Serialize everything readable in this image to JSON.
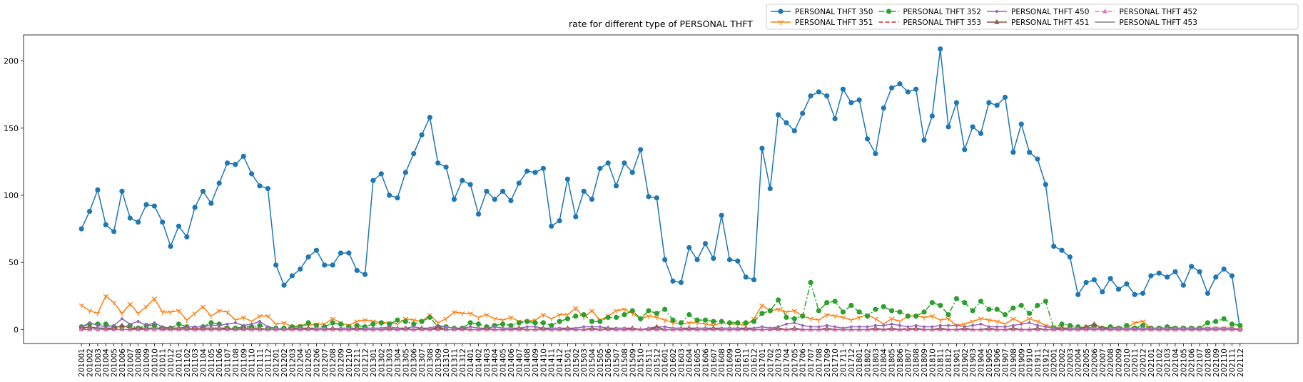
{
  "chart_data": {
    "type": "line",
    "title": "rate for different type of PERSONAL THFT",
    "categories": [
      "201001",
      "201002",
      "201003",
      "201004",
      "201005",
      "201006",
      "201007",
      "201008",
      "201009",
      "201010",
      "201011",
      "201012",
      "201101",
      "201102",
      "201103",
      "201104",
      "201105",
      "201106",
      "201107",
      "201108",
      "201109",
      "201110",
      "201111",
      "201112",
      "201201",
      "201202",
      "201203",
      "201204",
      "201205",
      "201206",
      "201207",
      "201208",
      "201209",
      "201210",
      "201211",
      "201212",
      "201301",
      "201302",
      "201303",
      "201304",
      "201305",
      "201306",
      "201307",
      "201308",
      "201309",
      "201310",
      "201311",
      "201312",
      "201401",
      "201402",
      "201403",
      "201404",
      "201405",
      "201406",
      "201407",
      "201408",
      "201409",
      "201410",
      "201411",
      "201412",
      "201501",
      "201502",
      "201503",
      "201504",
      "201505",
      "201506",
      "201507",
      "201508",
      "201509",
      "201510",
      "201511",
      "201512",
      "201601",
      "201602",
      "201603",
      "201604",
      "201605",
      "201606",
      "201607",
      "201608",
      "201609",
      "201610",
      "201611",
      "201612",
      "201701",
      "201702",
      "201703",
      "201704",
      "201705",
      "201706",
      "201707",
      "201708",
      "201709",
      "201710",
      "201711",
      "201712",
      "201801",
      "201802",
      "201803",
      "201804",
      "201805",
      "201806",
      "201807",
      "201808",
      "201809",
      "201810",
      "201811",
      "201812",
      "201901",
      "201902",
      "201903",
      "201904",
      "201905",
      "201906",
      "201907",
      "201908",
      "201909",
      "201910",
      "201911",
      "201912",
      "202001",
      "202002",
      "202003",
      "202004",
      "202005",
      "202006",
      "202007",
      "202008",
      "202009",
      "202010",
      "202011",
      "202012",
      "202101",
      "202102",
      "202103",
      "202104",
      "202105",
      "202106",
      "202107",
      "202108",
      "202109",
      "202110",
      "202111",
      "202112"
    ],
    "series": [
      {
        "name": "PERSONAL THFT 350",
        "color": "#1f77b4",
        "marker": "circle",
        "dash": "solid",
        "values": [
          75,
          88,
          104,
          78,
          73,
          103,
          83,
          80,
          93,
          92,
          80,
          62,
          77,
          69,
          91,
          103,
          94,
          109,
          124,
          123,
          129,
          116,
          107,
          105,
          48,
          33,
          40,
          45,
          54,
          59,
          48,
          48,
          57,
          57,
          44,
          41,
          111,
          116,
          100,
          98,
          117,
          131,
          145,
          158,
          124,
          121,
          97,
          111,
          108,
          86,
          103,
          97,
          103,
          96,
          109,
          118,
          117,
          120,
          77,
          81,
          112,
          84,
          103,
          97,
          120,
          124,
          107,
          124,
          117,
          134,
          99,
          98,
          52,
          36,
          35,
          61,
          52,
          64,
          53,
          85,
          52,
          51,
          39,
          37,
          135,
          105,
          160,
          154,
          148,
          161,
          174,
          177,
          174,
          157,
          179,
          169,
          171,
          142,
          131,
          165,
          180,
          183,
          177,
          179,
          141,
          159,
          209,
          151,
          169,
          134,
          151,
          146,
          169,
          167,
          173,
          132,
          153,
          132,
          127,
          108,
          62,
          59,
          54,
          26,
          35,
          37,
          28,
          38,
          30,
          34,
          26,
          27,
          40,
          42,
          39,
          43,
          33,
          47,
          43,
          27,
          39,
          45,
          40,
          0
        ]
      },
      {
        "name": "PERSONAL THFT 351",
        "color": "#ff7f0e",
        "marker": "tri-down",
        "dash": "solid",
        "values": [
          18,
          14,
          12,
          25,
          20,
          12,
          19,
          12,
          17,
          23,
          13,
          13,
          14,
          7,
          12,
          17,
          10,
          14,
          13,
          7,
          9,
          6,
          10,
          10,
          4,
          5,
          2,
          3,
          3,
          4,
          4,
          8,
          5,
          3,
          6,
          7,
          6,
          5,
          5,
          4,
          8,
          7,
          6,
          11,
          5,
          8,
          13,
          12,
          12,
          9,
          11,
          8,
          7,
          9,
          6,
          6,
          7,
          11,
          8,
          11,
          11,
          16,
          9,
          14,
          7,
          10,
          14,
          15,
          12,
          8,
          10,
          9,
          7,
          5,
          4,
          5,
          5,
          4,
          3,
          5,
          4,
          4,
          3,
          8,
          18,
          14,
          15,
          13,
          14,
          10,
          8,
          7,
          11,
          10,
          9,
          7,
          9,
          11,
          8,
          4,
          8,
          6,
          10,
          10,
          9,
          10,
          7,
          8,
          3,
          4,
          6,
          8,
          7,
          6,
          4,
          8,
          5,
          8,
          6,
          3,
          2,
          1,
          1,
          1,
          2,
          1,
          1,
          1,
          1,
          1,
          5,
          6,
          1,
          1,
          1,
          1,
          1,
          1,
          1,
          1,
          1,
          1,
          1,
          0
        ]
      },
      {
        "name": "PERSONAL THFT 352",
        "color": "#2ca02c",
        "marker": "circle",
        "dash": "dashdot",
        "values": [
          2,
          4,
          4,
          4,
          2,
          2,
          3,
          1,
          3,
          3,
          1,
          1,
          4,
          2,
          1,
          2,
          5,
          4,
          1,
          1,
          2,
          2,
          3,
          1,
          1,
          1,
          2,
          2,
          5,
          3,
          2,
          5,
          4,
          2,
          3,
          2,
          4,
          5,
          4,
          7,
          6,
          4,
          6,
          9,
          2,
          2,
          1,
          1,
          5,
          4,
          2,
          3,
          4,
          3,
          5,
          6,
          5,
          5,
          3,
          6,
          8,
          10,
          11,
          6,
          6,
          9,
          9,
          11,
          14,
          8,
          14,
          12,
          15,
          7,
          5,
          11,
          7,
          7,
          6,
          6,
          5,
          5,
          5,
          6,
          12,
          14,
          22,
          9,
          8,
          10,
          35,
          14,
          20,
          21,
          13,
          18,
          13,
          10,
          15,
          17,
          14,
          13,
          10,
          10,
          13,
          20,
          18,
          11,
          23,
          20,
          14,
          21,
          15,
          15,
          11,
          16,
          18,
          12,
          18,
          21,
          1,
          4,
          3,
          2,
          1,
          3,
          1,
          2,
          1,
          3,
          1,
          3,
          1,
          1,
          2,
          1,
          1,
          1,
          1,
          5,
          6,
          8,
          4,
          3
        ]
      },
      {
        "name": "PERSONAL THFT 353",
        "color": "#d62728",
        "marker": "none",
        "dash": "dashed",
        "values": [
          0,
          1,
          0,
          0,
          1,
          0,
          0,
          1,
          0,
          0,
          0,
          0,
          0,
          0,
          1,
          0,
          0,
          0,
          1,
          0,
          0,
          0,
          0,
          0,
          0,
          0,
          0,
          0,
          0,
          0,
          0,
          0,
          0,
          0,
          0,
          0,
          0,
          0,
          0,
          0,
          0,
          0,
          0,
          0,
          1,
          0,
          0,
          0,
          0,
          0,
          0,
          0,
          0,
          0,
          0,
          0,
          0,
          0,
          0,
          0,
          0,
          0,
          0,
          1,
          0,
          0,
          0,
          0,
          0,
          0,
          1,
          0,
          0,
          0,
          0,
          0,
          0,
          0,
          0,
          0,
          0,
          0,
          0,
          0,
          0,
          0,
          1,
          0,
          0,
          0,
          0,
          0,
          0,
          0,
          0,
          0,
          0,
          0,
          0,
          0,
          0,
          0,
          1,
          0,
          0,
          0,
          0,
          0,
          0,
          0,
          0,
          0,
          0,
          0,
          0,
          0,
          0,
          0,
          0,
          0,
          0,
          0,
          0,
          0,
          0,
          0,
          0,
          0,
          0,
          0,
          0,
          0,
          0,
          0,
          0,
          0,
          0,
          0,
          0,
          0,
          0,
          0,
          0,
          0
        ]
      },
      {
        "name": "PERSONAL THFT 450",
        "color": "#9467bd",
        "marker": "dot",
        "dash": "solid",
        "values": [
          2,
          5,
          3,
          2,
          3,
          8,
          4,
          6,
          3,
          5,
          2,
          1,
          1,
          2,
          2,
          2,
          3,
          3,
          4,
          5,
          3,
          4,
          6,
          2,
          1,
          0,
          1,
          1,
          1,
          1,
          1,
          0,
          1,
          1,
          1,
          1,
          1,
          1,
          2,
          1,
          1,
          2,
          1,
          1,
          3,
          2,
          1,
          1,
          2,
          1,
          1,
          2,
          1,
          1,
          1,
          2,
          2,
          1,
          1,
          1,
          1,
          1,
          2,
          2,
          2,
          1,
          1,
          1,
          1,
          0,
          1,
          2,
          2,
          1,
          1,
          1,
          1,
          1,
          1,
          1,
          1,
          1,
          1,
          1,
          2,
          1,
          2,
          4,
          5,
          3,
          2,
          2,
          3,
          2,
          1,
          2,
          2,
          2,
          3,
          3,
          4,
          3,
          2,
          3,
          2,
          2,
          3,
          3,
          3,
          2,
          3,
          4,
          2,
          2,
          2,
          3,
          4,
          5,
          3,
          2,
          1,
          1,
          1,
          1,
          1,
          1,
          1,
          1,
          1,
          1,
          1,
          1,
          1,
          1,
          1,
          1,
          1,
          1,
          1,
          1,
          1,
          1,
          1,
          0
        ]
      },
      {
        "name": "PERSONAL THFT 451",
        "color": "#8c564b",
        "marker": "triangle",
        "dash": "solid",
        "values": [
          1,
          2,
          1,
          1,
          1,
          3,
          1,
          1,
          1,
          1,
          1,
          1,
          1,
          1,
          0,
          1,
          1,
          1,
          1,
          0,
          1,
          1,
          1,
          0,
          0,
          0,
          1,
          0,
          1,
          0,
          0,
          1,
          0,
          0,
          1,
          0,
          0,
          0,
          1,
          0,
          1,
          0,
          1,
          0,
          2,
          0,
          0,
          1,
          0,
          0,
          1,
          0,
          0,
          0,
          1,
          0,
          0,
          1,
          0,
          0,
          1,
          0,
          0,
          1,
          0,
          1,
          0,
          0,
          1,
          0,
          0,
          2,
          0,
          0,
          0,
          1,
          0,
          0,
          1,
          0,
          0,
          0,
          1,
          0,
          0,
          0,
          1,
          0,
          1,
          0,
          0,
          0,
          1,
          0,
          0,
          0,
          0,
          0,
          1,
          0,
          1,
          0,
          0,
          1,
          0,
          0,
          1,
          0,
          0,
          1,
          0,
          0,
          1,
          0,
          0,
          1,
          0,
          0,
          1,
          0,
          0,
          1,
          0,
          0,
          2,
          4,
          1,
          0,
          0,
          0,
          0,
          0,
          0,
          0,
          0,
          0,
          0,
          0,
          0,
          0,
          0,
          0,
          0,
          0
        ]
      },
      {
        "name": "PERSONAL THFT 452",
        "color": "#e377c2",
        "marker": "triangle",
        "dash": "dashed",
        "values": [
          0,
          0,
          0,
          0,
          0,
          0,
          0,
          0,
          0,
          0,
          0,
          0,
          0,
          0,
          0,
          0,
          0,
          0,
          0,
          0,
          0,
          0,
          0,
          0,
          0,
          0,
          0,
          0,
          0,
          0,
          0,
          0,
          0,
          0,
          0,
          0,
          0,
          0,
          0,
          0,
          0,
          0,
          0,
          0,
          0,
          0,
          0,
          0,
          0,
          0,
          0,
          0,
          0,
          0,
          0,
          0,
          0,
          0,
          0,
          0,
          0,
          0,
          0,
          0,
          0,
          0,
          0,
          0,
          0,
          0,
          0,
          0,
          0,
          0,
          0,
          0,
          0,
          0,
          0,
          0,
          0,
          0,
          0,
          0,
          0,
          0,
          0,
          0,
          0,
          0,
          0,
          0,
          0,
          0,
          0,
          0,
          0,
          0,
          0,
          0,
          0,
          0,
          0,
          0,
          0,
          0,
          0,
          0,
          0,
          0,
          0,
          0,
          0,
          0,
          0,
          0,
          0,
          0,
          0,
          0,
          0,
          0,
          0,
          0,
          0,
          0,
          0,
          0,
          0,
          0,
          0,
          0,
          0,
          0,
          0,
          0,
          0,
          0,
          0,
          0,
          0,
          0,
          0,
          0
        ]
      },
      {
        "name": "PERSONAL THFT 453",
        "color": "#7f7f7f",
        "marker": "none",
        "dash": "solid",
        "values": [
          0,
          0,
          1,
          0,
          0,
          0,
          0,
          0,
          0,
          1,
          0,
          0,
          0,
          0,
          0,
          0,
          0,
          0,
          0,
          0,
          0,
          0,
          0,
          0,
          0,
          0,
          0,
          0,
          0,
          0,
          0,
          0,
          0,
          0,
          0,
          0,
          0,
          0,
          0,
          0,
          0,
          0,
          0,
          0,
          0,
          0,
          0,
          0,
          0,
          0,
          0,
          0,
          0,
          0,
          0,
          0,
          0,
          0,
          0,
          0,
          0,
          0,
          0,
          0,
          0,
          0,
          0,
          0,
          0,
          0,
          0,
          0,
          0,
          0,
          0,
          0,
          0,
          0,
          0,
          0,
          0,
          0,
          0,
          0,
          0,
          0,
          0,
          0,
          0,
          0,
          0,
          0,
          0,
          0,
          0,
          0,
          0,
          0,
          0,
          0,
          0,
          0,
          0,
          0,
          0,
          0,
          0,
          0,
          0,
          0,
          0,
          0,
          0,
          0,
          0,
          0,
          0,
          0,
          0,
          0,
          0,
          0,
          0,
          0,
          0,
          0,
          0,
          0,
          0,
          0,
          0,
          0,
          0,
          0,
          0,
          0,
          0,
          0,
          0,
          0,
          0,
          0,
          0,
          0
        ]
      }
    ],
    "ylim": [
      -10.45,
      219.45
    ],
    "yticks": [
      0,
      50,
      100,
      150,
      200
    ],
    "grid": false,
    "legend": "upper right"
  }
}
